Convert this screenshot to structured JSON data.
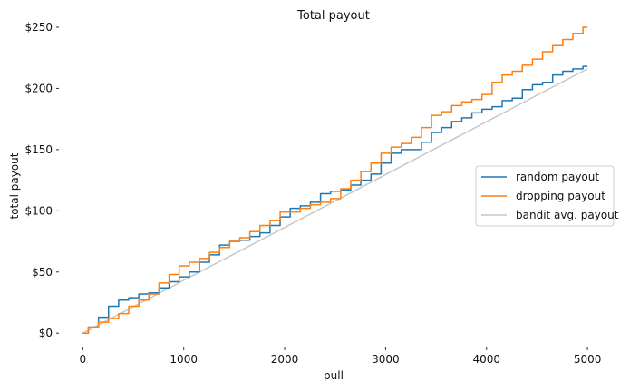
{
  "chart_data": {
    "type": "line",
    "title": "Total payout",
    "xlabel": "pull",
    "ylabel": "total payout",
    "xlim": [
      -120,
      5080
    ],
    "ylim": [
      -8,
      250
    ],
    "grid": false,
    "legend_position": "center-right",
    "x_ticks": [
      0,
      1000,
      2000,
      3000,
      4000,
      5000
    ],
    "x_tick_labels": [
      "0",
      "1000",
      "2000",
      "3000",
      "4000",
      "5000"
    ],
    "y_ticks": [
      0,
      50,
      100,
      150,
      200,
      250
    ],
    "y_tick_labels": [
      "$0",
      "$50",
      "$100",
      "$150",
      "$200",
      "$250"
    ],
    "series": [
      {
        "name": "random payout",
        "color": "#1f77b4",
        "x": [
          0,
          100,
          200,
          300,
          400,
          500,
          600,
          700,
          800,
          900,
          1000,
          1100,
          1200,
          1300,
          1400,
          1500,
          1600,
          1700,
          1800,
          1900,
          2000,
          2100,
          2200,
          2300,
          2400,
          2500,
          2600,
          2700,
          2800,
          2900,
          3000,
          3100,
          3200,
          3300,
          3400,
          3500,
          3600,
          3700,
          3800,
          3900,
          4000,
          4100,
          4200,
          4300,
          4400,
          4500,
          4600,
          4700,
          4800,
          4900,
          5000
        ],
        "values": [
          0,
          5,
          13,
          22,
          27,
          29,
          32,
          33,
          37,
          42,
          46,
          50,
          58,
          64,
          72,
          75,
          76,
          79,
          82,
          88,
          95,
          102,
          104,
          107,
          114,
          116,
          117,
          121,
          125,
          130,
          139,
          147,
          150,
          150,
          156,
          164,
          168,
          173,
          176,
          180,
          183,
          185,
          190,
          192,
          199,
          203,
          205,
          211,
          214,
          216,
          218
        ]
      },
      {
        "name": "dropping payout",
        "color": "#ff7f0e",
        "x": [
          0,
          100,
          200,
          300,
          400,
          500,
          600,
          700,
          800,
          900,
          1000,
          1100,
          1200,
          1300,
          1400,
          1500,
          1600,
          1700,
          1800,
          1900,
          2000,
          2100,
          2200,
          2300,
          2400,
          2500,
          2600,
          2700,
          2800,
          2900,
          3000,
          3100,
          3200,
          3300,
          3400,
          3500,
          3600,
          3700,
          3800,
          3900,
          4000,
          4100,
          4200,
          4300,
          4400,
          4500,
          4600,
          4700,
          4800,
          4900,
          5000
        ],
        "values": [
          0,
          5,
          9,
          12,
          16,
          22,
          27,
          32,
          41,
          48,
          55,
          58,
          61,
          66,
          70,
          75,
          78,
          83,
          88,
          92,
          99,
          99,
          102,
          105,
          107,
          110,
          118,
          125,
          132,
          139,
          147,
          152,
          155,
          160,
          168,
          178,
          181,
          186,
          189,
          191,
          195,
          205,
          211,
          214,
          219,
          224,
          230,
          235,
          240,
          245,
          250
        ]
      },
      {
        "name": "bandit avg. payout",
        "color": "#c7c7c7",
        "x": [
          0,
          5000
        ],
        "values": [
          0,
          216
        ]
      }
    ]
  }
}
